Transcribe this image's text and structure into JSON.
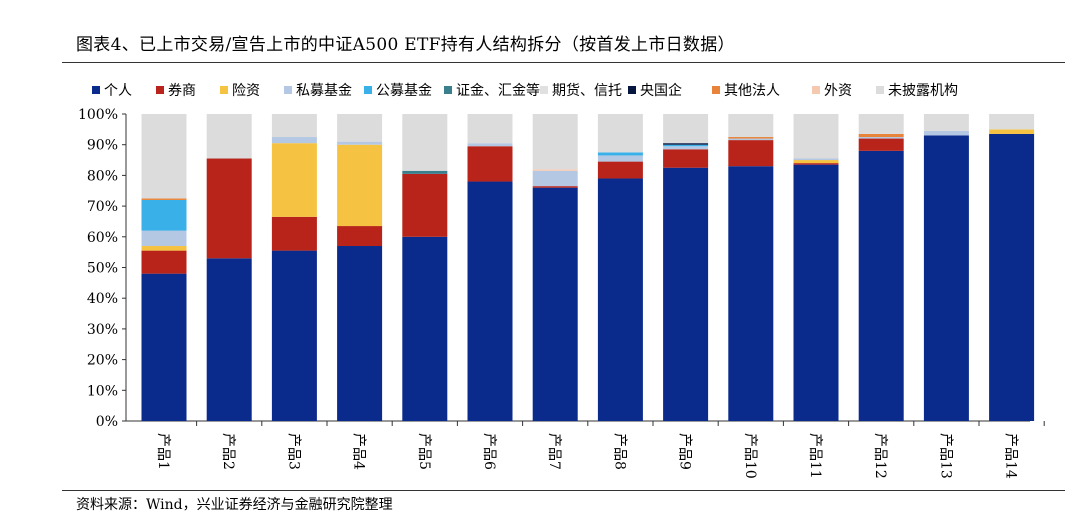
{
  "title": "图表4、已上市交易/宣告上市的中证A500 ETF持有人结构拆分（按首发上市日数据）",
  "source": "资料来源：Wind，兴业证券经济与金融研究院整理",
  "chart_data": {
    "type": "bar",
    "stacked": true,
    "categories": [
      "产品1",
      "产品2",
      "产品3",
      "产品4",
      "产品5",
      "产品6",
      "产品7",
      "产品8",
      "产品9",
      "产品10",
      "产品11",
      "产品12",
      "产品13",
      "产品14"
    ],
    "ylim": [
      0,
      100
    ],
    "yticks": [
      "0%",
      "10%",
      "20%",
      "30%",
      "40%",
      "50%",
      "60%",
      "70%",
      "80%",
      "90%",
      "100%"
    ],
    "xlabel": "",
    "ylabel": "",
    "grid": false,
    "legend_position": "top",
    "series": [
      {
        "name": "个人",
        "color": "#0a2a8c",
        "values": [
          48,
          53,
          55.5,
          57,
          60,
          78,
          76,
          79,
          82.5,
          83,
          83.5,
          88,
          93,
          93.5
        ]
      },
      {
        "name": "券商",
        "color": "#b8231a",
        "values": [
          7.5,
          32.5,
          11,
          6.5,
          20.5,
          11.5,
          0.5,
          5.5,
          6,
          8.5,
          0.5,
          4,
          0,
          0
        ]
      },
      {
        "name": "险资",
        "color": "#f5c242",
        "values": [
          1.5,
          0,
          24,
          26.5,
          0,
          0,
          0,
          0,
          0,
          0,
          1,
          0,
          0,
          1.5
        ]
      },
      {
        "name": "私募基金",
        "color": "#b4c8e4",
        "values": [
          5,
          0,
          2,
          1,
          0,
          1,
          5,
          2,
          1,
          0.5,
          0.5,
          0.5,
          1.5,
          0
        ]
      },
      {
        "name": "公募基金",
        "color": "#3ab0e8",
        "values": [
          10,
          0,
          0,
          0,
          0,
          0,
          0,
          1,
          0.5,
          0,
          0,
          0,
          0,
          0
        ]
      },
      {
        "name": "证金、汇金等",
        "color": "#3a7f8c",
        "values": [
          0,
          0,
          0,
          0,
          1,
          0,
          0,
          0,
          0,
          0,
          0,
          0,
          0,
          0
        ]
      },
      {
        "name": "期货、信托",
        "color": "#e0e0e0",
        "values": [
          0,
          0,
          0,
          0,
          0,
          0,
          0,
          0,
          0,
          0,
          0,
          0,
          0,
          0
        ]
      },
      {
        "name": "央国企",
        "color": "#06163f",
        "values": [
          0,
          0,
          0,
          0,
          0,
          0,
          0,
          0,
          0.5,
          0,
          0,
          0,
          0,
          0
        ]
      },
      {
        "name": "其他法人",
        "color": "#e8843a",
        "values": [
          0.5,
          0,
          0,
          0,
          0,
          0,
          0,
          0,
          0,
          0.5,
          0,
          1,
          0,
          0
        ]
      },
      {
        "name": "外资",
        "color": "#f5c9b0",
        "values": [
          0,
          0,
          0,
          0,
          0,
          0,
          0.5,
          0,
          0,
          0,
          0,
          0,
          0,
          0
        ]
      },
      {
        "name": "未披露机构",
        "color": "#dcdcdc",
        "values": [
          27.5,
          14.5,
          7.5,
          9,
          18.5,
          9.5,
          18,
          12.5,
          9.5,
          7.5,
          14.5,
          6.5,
          5.5,
          5
        ]
      }
    ]
  }
}
